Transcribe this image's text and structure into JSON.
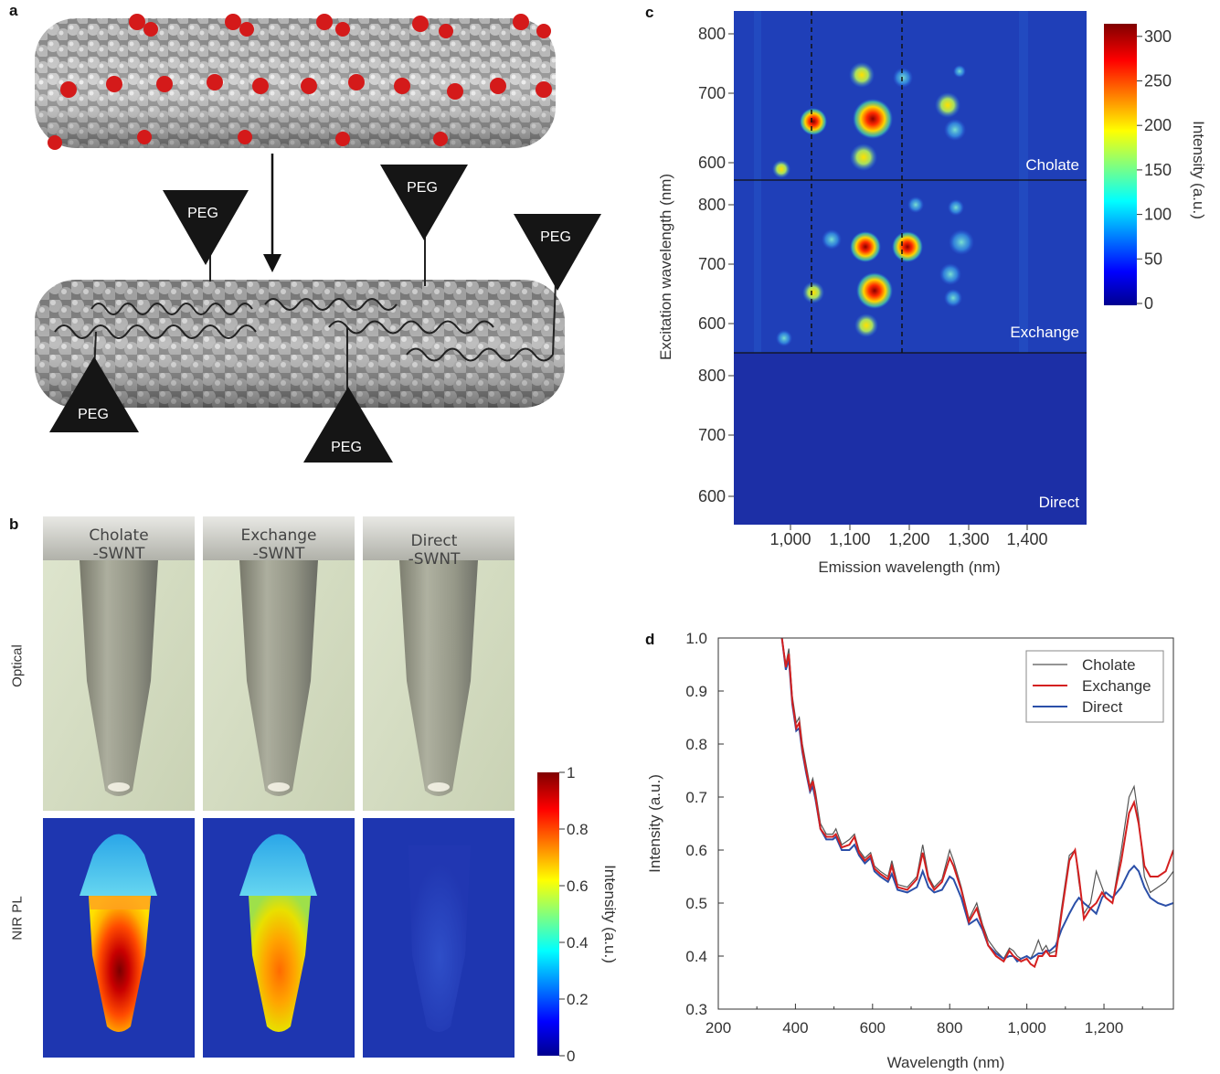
{
  "panels": {
    "a": {
      "letter": "a",
      "peg_label": "PEG"
    },
    "b": {
      "letter": "b",
      "tubes": [
        "Cholate\n-SWNT",
        "Exchange\n-SWNT",
        "Direct\n-SWNT"
      ],
      "tube_line1": [
        "Cholate",
        "Exchange",
        "Direct"
      ],
      "tube_line2": [
        "-SWNT",
        "-SWNT",
        "-SWNT"
      ],
      "row_labels": [
        "Optical",
        "NIR PL"
      ],
      "colorbar_ticks": [
        "0",
        "0.2",
        "0.4",
        "0.6",
        "0.8",
        "1"
      ],
      "colorbar_label": "Intensity (a.u.)"
    },
    "c": {
      "letter": "c",
      "xlabel": "Emission wavelength (nm)",
      "ylabel": "Excitation wavelength (nm)",
      "x_ticks": [
        "1,000",
        "1,100",
        "1,200",
        "1,300",
        "1,400"
      ],
      "y_ticks": [
        "600",
        "700",
        "800"
      ],
      "subpanels": [
        "Cholate",
        "Exchange",
        "Direct"
      ],
      "colorbar_ticks": [
        "0",
        "50",
        "100",
        "150",
        "200",
        "250",
        "300"
      ],
      "colorbar_label": "Intensity (a.u.)"
    },
    "d": {
      "letter": "d"
    }
  },
  "chart_data": {
    "type": "line",
    "xlabel": "Wavelength (nm)",
    "ylabel": "Intensity (a.u.)",
    "xlim": [
      200,
      1380
    ],
    "ylim": [
      0.3,
      1.0
    ],
    "x_ticks": [
      "200",
      "400",
      "600",
      "800",
      "1,000",
      "1,200"
    ],
    "y_ticks": [
      "0.3",
      "0.4",
      "0.5",
      "0.6",
      "0.7",
      "0.8",
      "0.9",
      "1.0"
    ],
    "legend_position": "top-right",
    "colors": {
      "Cholate": "#555555",
      "Exchange": "#d42020",
      "Direct": "#2b4fa8"
    },
    "series": [
      {
        "name": "Cholate",
        "x": [
          365,
          375,
          383,
          392,
          402,
          410,
          418,
          428,
          438,
          445,
          452,
          465,
          480,
          497,
          505,
          520,
          540,
          553,
          565,
          580,
          595,
          605,
          620,
          640,
          650,
          665,
          690,
          715,
          730,
          745,
          760,
          780,
          800,
          810,
          830,
          850,
          870,
          885,
          900,
          920,
          940,
          955,
          965,
          975,
          985,
          1000,
          1010,
          1020,
          1030,
          1040,
          1050,
          1060,
          1075,
          1090,
          1110,
          1125,
          1135,
          1148,
          1165,
          1180,
          1195,
          1205,
          1222,
          1245,
          1265,
          1278,
          1290,
          1305,
          1320,
          1340,
          1360,
          1380
        ],
        "y": [
          1.0,
          0.95,
          0.98,
          0.89,
          0.84,
          0.85,
          0.8,
          0.76,
          0.72,
          0.735,
          0.71,
          0.65,
          0.63,
          0.63,
          0.64,
          0.61,
          0.62,
          0.63,
          0.6,
          0.585,
          0.595,
          0.57,
          0.56,
          0.55,
          0.58,
          0.535,
          0.53,
          0.55,
          0.61,
          0.55,
          0.53,
          0.545,
          0.6,
          0.58,
          0.53,
          0.47,
          0.5,
          0.46,
          0.43,
          0.41,
          0.395,
          0.415,
          0.41,
          0.4,
          0.395,
          0.4,
          0.395,
          0.41,
          0.43,
          0.41,
          0.42,
          0.405,
          0.41,
          0.49,
          0.59,
          0.6,
          0.54,
          0.48,
          0.5,
          0.56,
          0.53,
          0.51,
          0.5,
          0.6,
          0.7,
          0.72,
          0.66,
          0.55,
          0.52,
          0.53,
          0.54,
          0.56
        ]
      },
      {
        "name": "Exchange",
        "x": [
          365,
          375,
          383,
          392,
          402,
          410,
          418,
          428,
          438,
          445,
          452,
          465,
          480,
          497,
          505,
          520,
          540,
          553,
          565,
          580,
          595,
          605,
          620,
          640,
          650,
          665,
          690,
          715,
          730,
          745,
          760,
          780,
          800,
          810,
          830,
          850,
          870,
          885,
          900,
          920,
          940,
          955,
          965,
          975,
          985,
          1000,
          1010,
          1020,
          1030,
          1040,
          1050,
          1060,
          1075,
          1090,
          1110,
          1125,
          1135,
          1148,
          1165,
          1180,
          1195,
          1205,
          1222,
          1245,
          1265,
          1278,
          1290,
          1305,
          1320,
          1340,
          1360,
          1380
        ],
        "y": [
          1.0,
          0.945,
          0.97,
          0.88,
          0.83,
          0.84,
          0.79,
          0.75,
          0.715,
          0.73,
          0.7,
          0.64,
          0.625,
          0.625,
          0.63,
          0.605,
          0.61,
          0.625,
          0.595,
          0.58,
          0.59,
          0.565,
          0.555,
          0.545,
          0.57,
          0.53,
          0.525,
          0.545,
          0.595,
          0.545,
          0.525,
          0.54,
          0.585,
          0.57,
          0.525,
          0.465,
          0.49,
          0.455,
          0.42,
          0.4,
          0.39,
          0.41,
          0.4,
          0.395,
          0.39,
          0.395,
          0.385,
          0.38,
          0.4,
          0.4,
          0.41,
          0.4,
          0.4,
          0.48,
          0.58,
          0.6,
          0.55,
          0.47,
          0.49,
          0.5,
          0.52,
          0.51,
          0.5,
          0.58,
          0.67,
          0.69,
          0.65,
          0.57,
          0.55,
          0.55,
          0.56,
          0.6
        ]
      },
      {
        "name": "Direct",
        "x": [
          365,
          375,
          383,
          392,
          402,
          410,
          418,
          428,
          438,
          445,
          452,
          465,
          480,
          497,
          505,
          520,
          540,
          553,
          565,
          580,
          595,
          605,
          620,
          640,
          650,
          665,
          690,
          715,
          730,
          745,
          760,
          780,
          800,
          810,
          830,
          850,
          870,
          885,
          900,
          920,
          940,
          955,
          965,
          975,
          985,
          1000,
          1010,
          1020,
          1030,
          1040,
          1050,
          1060,
          1075,
          1090,
          1110,
          1125,
          1135,
          1148,
          1165,
          1180,
          1195,
          1205,
          1222,
          1245,
          1265,
          1278,
          1290,
          1305,
          1320,
          1340,
          1360,
          1380
        ],
        "y": [
          1.0,
          0.94,
          0.96,
          0.875,
          0.825,
          0.83,
          0.785,
          0.745,
          0.71,
          0.72,
          0.695,
          0.64,
          0.62,
          0.62,
          0.625,
          0.6,
          0.6,
          0.61,
          0.59,
          0.575,
          0.585,
          0.56,
          0.55,
          0.54,
          0.555,
          0.525,
          0.52,
          0.53,
          0.56,
          0.53,
          0.52,
          0.525,
          0.55,
          0.545,
          0.51,
          0.46,
          0.47,
          0.45,
          0.42,
          0.405,
          0.395,
          0.4,
          0.4,
          0.39,
          0.395,
          0.4,
          0.395,
          0.4,
          0.405,
          0.405,
          0.41,
          0.41,
          0.42,
          0.45,
          0.48,
          0.5,
          0.51,
          0.5,
          0.49,
          0.48,
          0.51,
          0.52,
          0.51,
          0.53,
          0.56,
          0.57,
          0.56,
          0.53,
          0.51,
          0.5,
          0.495,
          0.5
        ]
      }
    ]
  }
}
